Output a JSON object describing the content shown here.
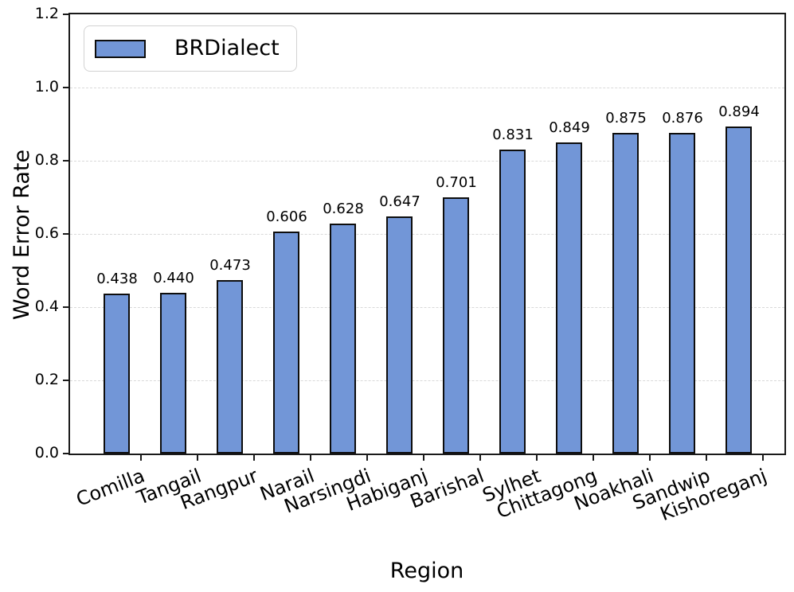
{
  "chart_data": {
    "type": "bar",
    "title": "",
    "xlabel": "Region",
    "ylabel": "Word Error Rate",
    "categories": [
      "Comilla",
      "Tangail",
      "Rangpur",
      "Narail",
      "Narsingdi",
      "Habiganj",
      "Barishal",
      "Sylhet",
      "Chittagong",
      "Noakhali",
      "Sandwip",
      "Kishoreganj"
    ],
    "series": [
      {
        "name": "BRDialect",
        "values": [
          0.438,
          0.44,
          0.473,
          0.606,
          0.628,
          0.647,
          0.701,
          0.831,
          0.849,
          0.875,
          0.876,
          0.894
        ]
      }
    ],
    "value_labels": [
      "0.438",
      "0.440",
      "0.473",
      "0.606",
      "0.628",
      "0.647",
      "0.701",
      "0.831",
      "0.849",
      "0.875",
      "0.876",
      "0.894"
    ],
    "ylim": [
      0.0,
      1.2
    ],
    "yticks": [
      "0.0",
      "0.2",
      "0.4",
      "0.6",
      "0.8",
      "1.0",
      "1.2"
    ],
    "grid": "horizontal-dashed",
    "legend": {
      "position": "upper-left",
      "entries": [
        "BRDialect"
      ]
    },
    "colors": {
      "bar_fill": "#7296d7",
      "bar_edge": "#0d0d0d",
      "grid": "#d9d9d9",
      "legend_border": "#d2d2d2"
    }
  }
}
